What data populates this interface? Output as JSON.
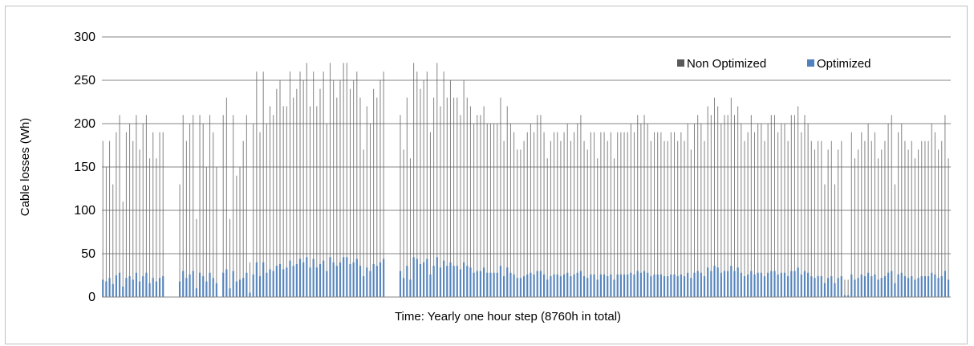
{
  "chart_data": {
    "type": "bar",
    "title": "",
    "xlabel": "Time: Yearly one hour step (8760h in total)",
    "ylabel": "Cable losses (Wh)",
    "ylim": [
      0,
      300
    ],
    "yticks": [
      "0",
      "50",
      "100",
      "150",
      "200",
      "250",
      "300"
    ],
    "grid": true,
    "legend_position": "top-right",
    "x_range_hours": [
      1,
      8760
    ],
    "series": [
      {
        "name": "Non Optimized",
        "color": "#595959",
        "sample_every_hours": 40,
        "values": [
          180,
          150,
          180,
          130,
          190,
          210,
          110,
          190,
          200,
          180,
          210,
          170,
          200,
          210,
          160,
          190,
          160,
          190,
          190,
          0,
          0,
          0,
          0,
          130,
          210,
          180,
          200,
          210,
          90,
          210,
          200,
          150,
          210,
          190,
          150,
          0,
          210,
          230,
          90,
          210,
          140,
          150,
          180,
          210,
          40,
          200,
          260,
          190,
          260,
          200,
          220,
          210,
          240,
          250,
          220,
          220,
          260,
          230,
          240,
          260,
          250,
          270,
          220,
          260,
          220,
          240,
          260,
          200,
          270,
          250,
          230,
          250,
          270,
          270,
          240,
          250,
          260,
          230,
          170,
          220,
          200,
          240,
          230,
          250,
          260,
          0,
          0,
          0,
          0,
          210,
          170,
          230,
          160,
          270,
          260,
          240,
          250,
          260,
          190,
          230,
          270,
          220,
          260,
          230,
          250,
          230,
          230,
          210,
          250,
          230,
          220,
          200,
          210,
          210,
          220,
          200,
          200,
          200,
          200,
          230,
          180,
          220,
          200,
          190,
          170,
          170,
          180,
          190,
          200,
          190,
          210,
          210,
          190,
          160,
          180,
          190,
          190,
          180,
          190,
          200,
          180,
          190,
          200,
          210,
          180,
          170,
          190,
          190,
          160,
          190,
          190,
          180,
          190,
          160,
          190,
          190,
          190,
          190,
          200,
          190,
          210,
          200,
          210,
          200,
          180,
          190,
          190,
          190,
          180,
          180,
          190,
          190,
          180,
          190,
          180,
          200,
          170,
          200,
          210,
          200,
          180,
          220,
          210,
          230,
          220,
          200,
          210,
          210,
          230,
          210,
          220,
          200,
          180,
          190,
          210,
          190,
          200,
          200,
          180,
          200,
          210,
          210,
          190,
          200,
          200,
          180,
          210,
          210,
          220,
          190,
          210,
          200,
          180,
          170,
          180,
          180,
          130,
          170,
          180,
          130,
          170,
          180,
          20,
          20,
          190,
          160,
          170,
          190,
          180,
          200,
          180,
          190,
          160,
          170,
          180,
          200,
          210,
          130,
          190,
          200,
          180,
          170,
          180,
          160,
          170,
          180,
          180,
          180,
          200,
          190,
          170,
          180,
          210,
          160
        ]
      },
      {
        "name": "Optimized",
        "color": "#4f81bd",
        "sample_every_hours": 40,
        "values": [
          20,
          18,
          22,
          15,
          25,
          28,
          12,
          22,
          24,
          20,
          28,
          18,
          24,
          28,
          16,
          22,
          18,
          22,
          24,
          0,
          0,
          0,
          0,
          18,
          30,
          22,
          26,
          30,
          10,
          28,
          24,
          18,
          28,
          22,
          16,
          0,
          28,
          32,
          10,
          30,
          18,
          20,
          22,
          28,
          5,
          26,
          40,
          24,
          40,
          28,
          32,
          30,
          36,
          38,
          32,
          34,
          42,
          36,
          38,
          44,
          40,
          46,
          34,
          44,
          34,
          38,
          42,
          30,
          46,
          40,
          36,
          40,
          46,
          46,
          38,
          40,
          44,
          36,
          24,
          34,
          30,
          38,
          36,
          40,
          44,
          0,
          0,
          0,
          0,
          30,
          22,
          36,
          20,
          46,
          44,
          38,
          40,
          44,
          26,
          36,
          46,
          34,
          42,
          36,
          40,
          36,
          36,
          32,
          40,
          36,
          34,
          28,
          30,
          30,
          34,
          28,
          28,
          28,
          28,
          36,
          24,
          34,
          28,
          26,
          22,
          22,
          24,
          26,
          28,
          26,
          30,
          30,
          26,
          20,
          24,
          26,
          26,
          24,
          26,
          28,
          24,
          26,
          28,
          30,
          24,
          22,
          26,
          26,
          20,
          26,
          26,
          24,
          26,
          20,
          26,
          26,
          26,
          26,
          28,
          26,
          30,
          28,
          30,
          28,
          24,
          26,
          26,
          26,
          24,
          24,
          26,
          26,
          24,
          26,
          24,
          28,
          22,
          28,
          30,
          28,
          24,
          34,
          30,
          36,
          34,
          28,
          30,
          30,
          36,
          30,
          34,
          28,
          24,
          26,
          30,
          26,
          28,
          28,
          24,
          28,
          30,
          30,
          26,
          28,
          28,
          24,
          30,
          30,
          34,
          26,
          30,
          28,
          24,
          22,
          24,
          24,
          16,
          22,
          24,
          16,
          22,
          24,
          2,
          2,
          26,
          20,
          22,
          26,
          24,
          28,
          24,
          26,
          20,
          22,
          24,
          28,
          30,
          16,
          26,
          28,
          24,
          22,
          24,
          20,
          22,
          24,
          24,
          24,
          28,
          26,
          22,
          24,
          30,
          20
        ]
      }
    ]
  }
}
